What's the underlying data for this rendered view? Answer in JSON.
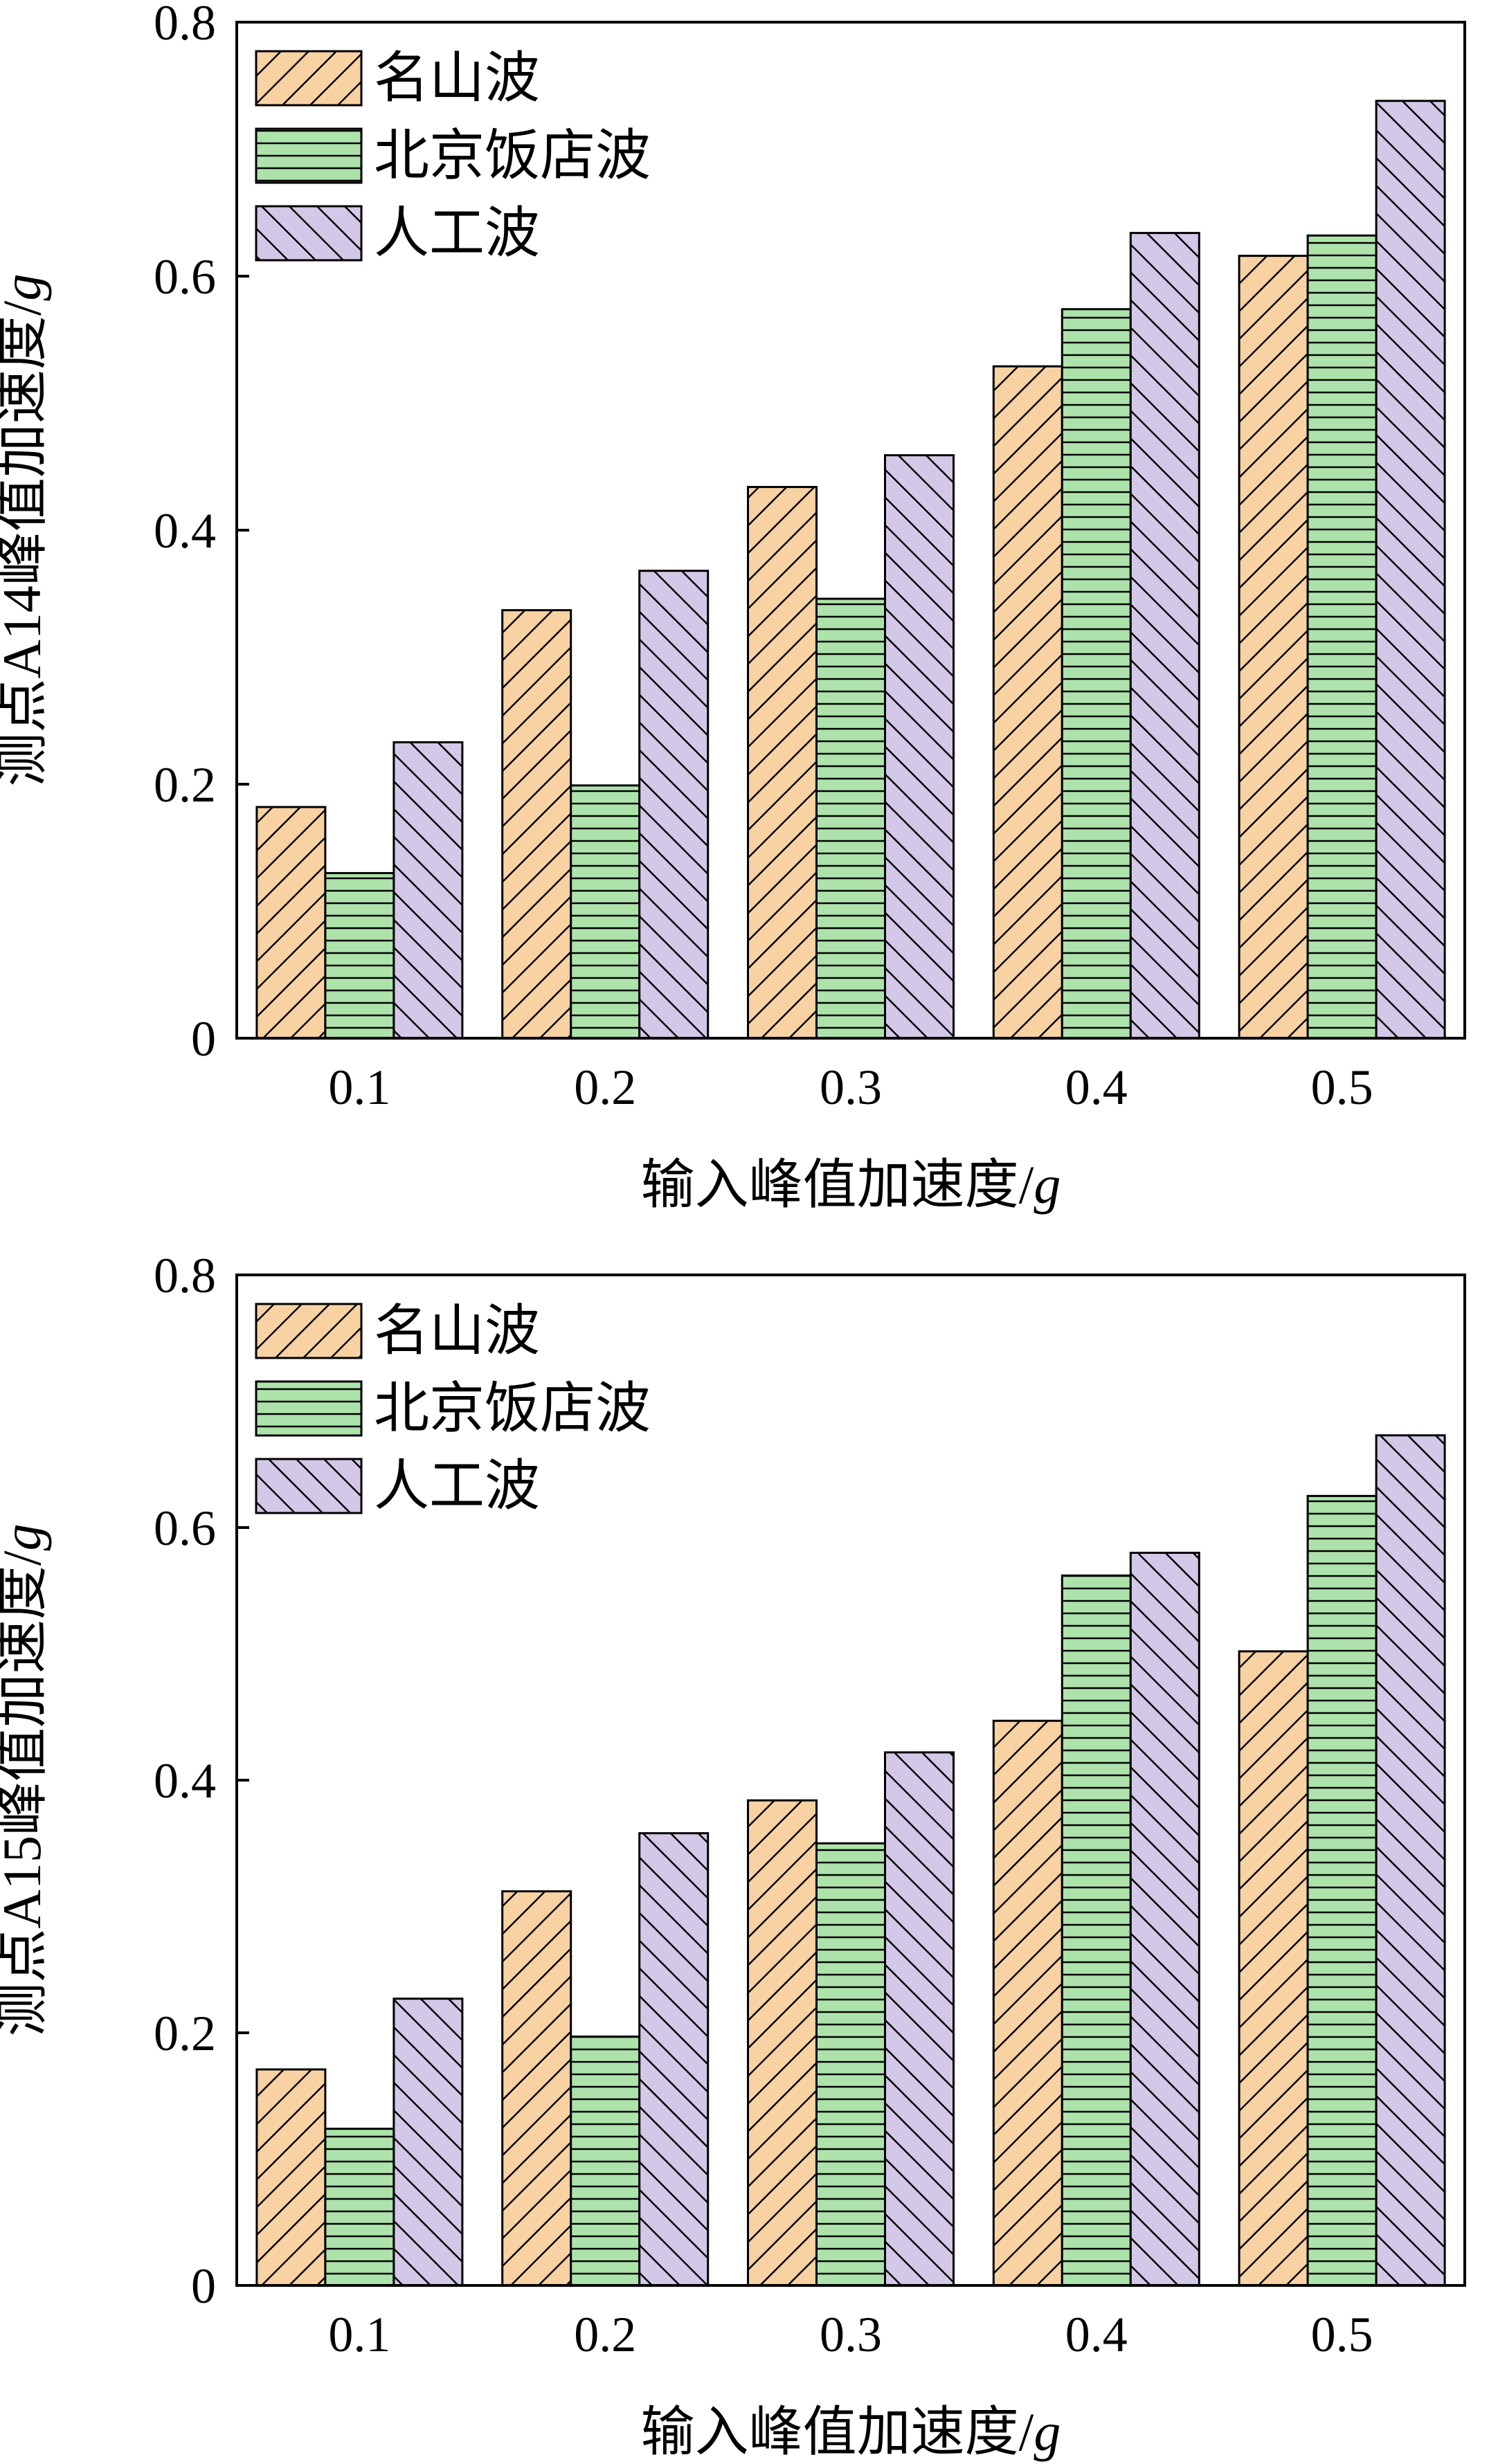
{
  "colors": {
    "series_1": "#f8d2a3",
    "series_2": "#ade3ab",
    "series_3": "#d4c8e8",
    "line": "#000000"
  },
  "legend_patterns": [
    "diagonal-forward-hatch",
    "horizontal-hatch",
    "diagonal-backward-hatch"
  ],
  "chart_data": [
    {
      "type": "bar",
      "categories": [
        "0.1",
        "0.2",
        "0.3",
        "0.4",
        "0.5"
      ],
      "series": [
        {
          "name": "名山波",
          "values": [
            0.182,
            0.337,
            0.434,
            0.529,
            0.616
          ]
        },
        {
          "name": "北京饭店波",
          "values": [
            0.13,
            0.199,
            0.346,
            0.574,
            0.632
          ]
        },
        {
          "name": "人工波",
          "values": [
            0.233,
            0.368,
            0.459,
            0.634,
            0.738
          ]
        }
      ],
      "ylim": [
        0,
        0.8
      ],
      "yticks": [
        "0",
        "0.2",
        "0.4",
        "0.6",
        "0.8"
      ],
      "xlabel": "输入峰值加速度/",
      "xlabel_unit": "g",
      "ylabel": "测点A14峰值加速度/",
      "ylabel_unit": "g",
      "legend": "top-left",
      "grid": false
    },
    {
      "type": "bar",
      "categories": [
        "0.1",
        "0.2",
        "0.3",
        "0.4",
        "0.5"
      ],
      "series": [
        {
          "name": "名山波",
          "values": [
            0.171,
            0.312,
            0.384,
            0.447,
            0.502
          ]
        },
        {
          "name": "北京饭店波",
          "values": [
            0.124,
            0.197,
            0.35,
            0.562,
            0.625
          ]
        },
        {
          "name": "人工波",
          "values": [
            0.227,
            0.358,
            0.422,
            0.58,
            0.673
          ]
        }
      ],
      "ylim": [
        0,
        0.8
      ],
      "yticks": [
        "0",
        "0.2",
        "0.4",
        "0.6",
        "0.8"
      ],
      "xlabel": "输入峰值加速度/",
      "xlabel_unit": "g",
      "ylabel": "测点A15峰值加速度/",
      "ylabel_unit": "g",
      "legend": "top-left",
      "grid": false
    }
  ]
}
